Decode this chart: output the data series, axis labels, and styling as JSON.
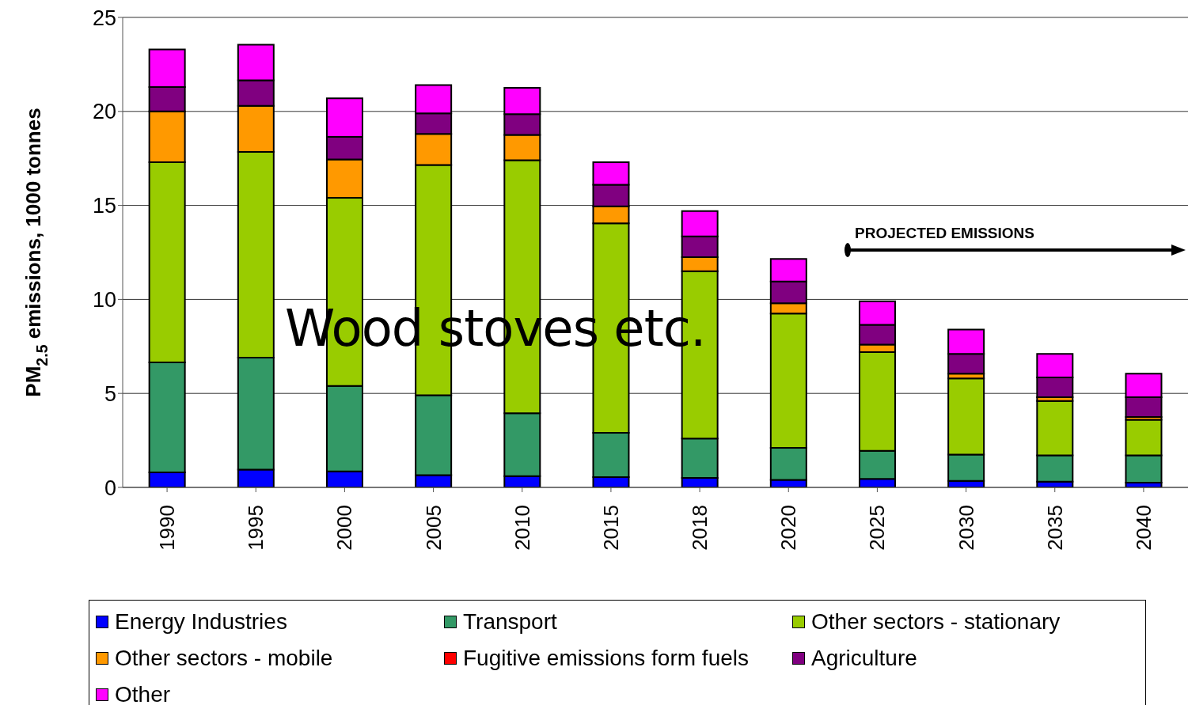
{
  "chart_data": {
    "type": "bar",
    "stacked": true,
    "ylabel": "PM$_{2.5}$ emissions, 1000 tonnes",
    "categories": [
      "1990",
      "1995",
      "2000",
      "2005",
      "2010",
      "2015",
      "2018",
      "2020",
      "2025",
      "2030",
      "2035",
      "2040"
    ],
    "series": [
      {
        "name": "Energy Industries",
        "color": "#0000ff",
        "values": [
          0.8,
          0.95,
          0.85,
          0.65,
          0.6,
          0.55,
          0.5,
          0.4,
          0.45,
          0.35,
          0.3,
          0.25
        ]
      },
      {
        "name": "Transport",
        "color": "#339966",
        "values": [
          5.85,
          5.95,
          4.55,
          4.25,
          3.35,
          2.35,
          2.1,
          1.7,
          1.5,
          1.4,
          1.4,
          1.45
        ]
      },
      {
        "name": "Other sectors - stationary",
        "color": "#99cc00",
        "values": [
          10.65,
          10.95,
          10.0,
          12.25,
          13.45,
          11.15,
          8.9,
          7.15,
          5.25,
          4.05,
          2.9,
          1.9
        ]
      },
      {
        "name": "Other sectors - mobile",
        "color": "#ff9900",
        "values": [
          2.7,
          2.45,
          2.05,
          1.65,
          1.35,
          0.9,
          0.75,
          0.55,
          0.4,
          0.25,
          0.2,
          0.15
        ]
      },
      {
        "name": "Fugitive emissions form fuels",
        "color": "#ff0000",
        "values": [
          0,
          0,
          0,
          0,
          0,
          0,
          0,
          0,
          0,
          0,
          0,
          0
        ]
      },
      {
        "name": "Agriculture",
        "color": "#800080",
        "values": [
          1.3,
          1.35,
          1.2,
          1.1,
          1.1,
          1.15,
          1.1,
          1.15,
          1.05,
          1.05,
          1.05,
          1.05
        ]
      },
      {
        "name": "Other",
        "color": "#ff00ff",
        "values": [
          2.0,
          1.9,
          2.05,
          1.5,
          1.4,
          1.2,
          1.35,
          1.2,
          1.25,
          1.3,
          1.25,
          1.25
        ]
      }
    ],
    "ylim": [
      0,
      25
    ],
    "yticks": [
      0,
      5,
      10,
      15,
      20,
      25
    ],
    "grid": "y",
    "legend": "bottom",
    "annotations": [
      "Wood stoves etc.",
      "PROJECTED EMISSIONS"
    ]
  }
}
